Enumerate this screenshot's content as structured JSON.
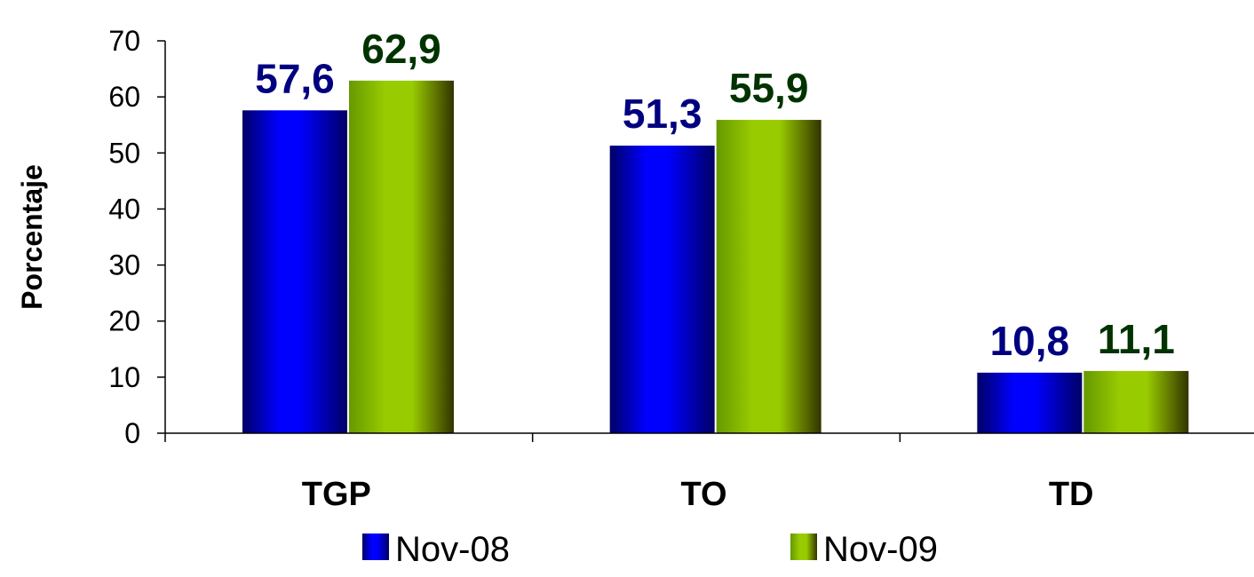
{
  "chart_data": {
    "type": "bar",
    "categories": [
      "TGP",
      "TO",
      "TD"
    ],
    "series": [
      {
        "name": "Nov-08",
        "values": [
          57.6,
          51.3,
          10.8
        ],
        "labels": [
          "57,6",
          "51,3",
          "10,8"
        ],
        "color": "#0000ff",
        "label_color": "#000080"
      },
      {
        "name": "Nov-09",
        "values": [
          62.9,
          55.9,
          11.1
        ],
        "labels": [
          "62,9",
          "55,9",
          "11,1"
        ],
        "color": "#99cc00",
        "label_color": "#003300"
      }
    ],
    "ylabel": "Porcentaje",
    "xlabel": "",
    "ylim": [
      0,
      70
    ],
    "yticks": [
      0,
      10,
      20,
      30,
      40,
      50,
      60,
      70
    ],
    "grid": false,
    "legend_position": "bottom"
  }
}
